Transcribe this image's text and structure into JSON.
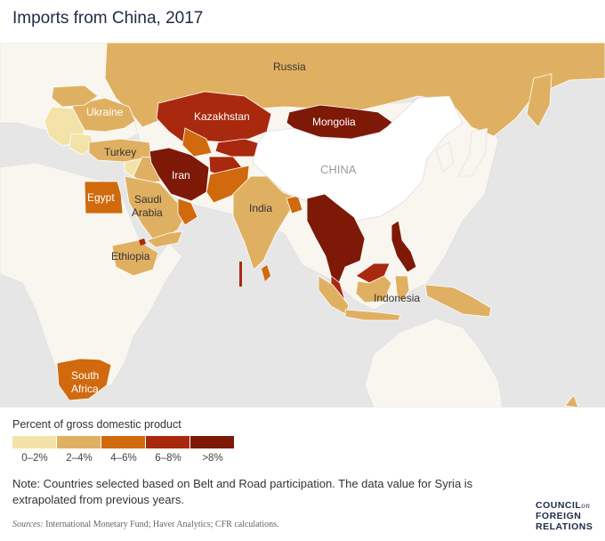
{
  "title": "Imports from China, 2017",
  "map_labels": {
    "russia": "Russia",
    "ukraine": "Ukraine",
    "kazakhstan": "Kazakhstan",
    "mongolia": "Mongolia",
    "turkey": "Turkey",
    "iran": "Iran",
    "china": "CHINA",
    "egypt": "Egypt",
    "saudi_line1": "Saudi",
    "saudi_line2": "Arabia",
    "india": "India",
    "ethiopia": "Ethiopia",
    "indonesia": "Indonesia",
    "south_africa_line1": "South",
    "south_africa_line2": "Africa"
  },
  "legend": {
    "title": "Percent of gross domestic product",
    "bins": [
      {
        "label": "0–2%",
        "color": "#f3e3a8"
      },
      {
        "label": "2–4%",
        "color": "#e0b062"
      },
      {
        "label": "4–6%",
        "color": "#d06a0d"
      },
      {
        "label": "6–8%",
        "color": "#a9290f"
      },
      {
        "label": ">8%",
        "color": "#7e1908"
      }
    ]
  },
  "colors": {
    "land_base": "#f8f6ee",
    "ocean": "#e6e6e6",
    "china_fill": "#ffffff"
  },
  "note": "Note: Countries selected based on Belt and Road participation. The data value for Syria is extrapolated from previous years.",
  "sources_label": "Sources:",
  "sources_text": " International Monetary Fund; Haver Analytics; CFR calculations.",
  "logo": {
    "line1": "COUNCIL",
    "on": "on",
    "line2": "FOREIGN",
    "line3": "RELATIONS"
  }
}
